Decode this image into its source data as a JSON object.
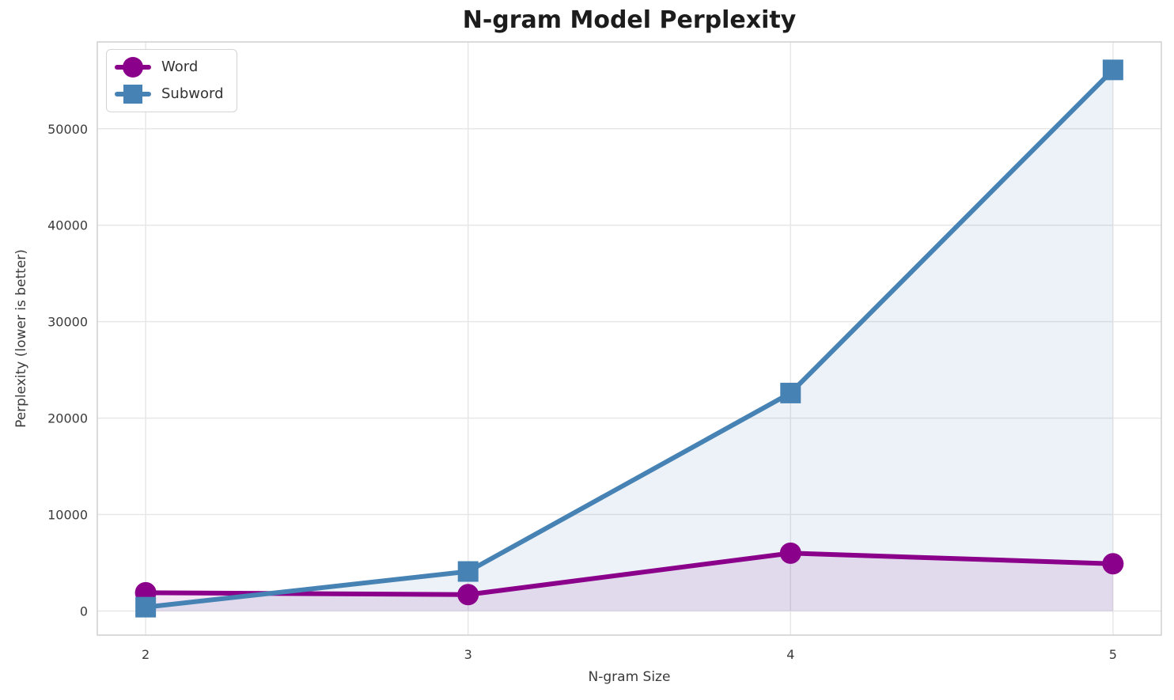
{
  "chart_data": {
    "type": "line",
    "title": "N-gram Model Perplexity",
    "xlabel": "N-gram Size",
    "ylabel": "Perplexity (lower is better)",
    "x": [
      2,
      3,
      4,
      5
    ],
    "series": [
      {
        "name": "Word",
        "marker": "circle",
        "color": "#8B008B",
        "values": [
          1900,
          1700,
          6000,
          4900
        ]
      },
      {
        "name": "Subword",
        "marker": "square",
        "color": "#4682B4",
        "values": [
          400,
          4100,
          22600,
          56100
        ]
      }
    ],
    "xticks": [
      2,
      3,
      4,
      5
    ],
    "yticks": [
      0,
      10000,
      20000,
      30000,
      40000,
      50000
    ],
    "xlim": [
      1.85,
      5.15
    ],
    "ylim": [
      -2500,
      59000
    ],
    "grid": true,
    "legend_position": "upper left",
    "fill_to_zero": true,
    "fill_alpha": 0.1,
    "colors": {
      "grid": "#e7e7e7",
      "spine": "#cfcfcf",
      "tick_text": "#3b3b3b",
      "title_text": "#1c1c1c"
    }
  }
}
